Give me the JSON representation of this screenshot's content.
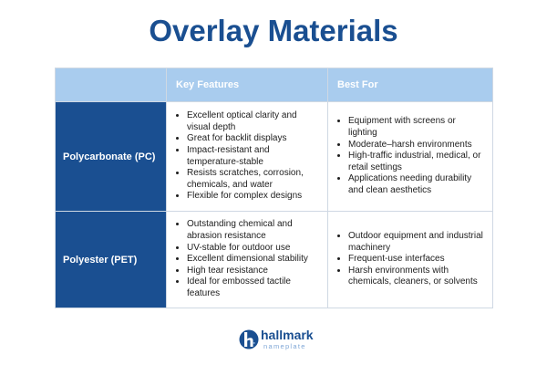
{
  "title": "Overlay Materials",
  "table": {
    "headers": [
      "",
      "Key Features",
      "Best For"
    ],
    "rows": [
      {
        "name": "Polycarbonate (PC)",
        "features": [
          "Excellent optical clarity and visual depth",
          "Great for backlit displays",
          "Impact-resistant and temperature-stable",
          "Resists scratches, corrosion, chemicals, and water",
          "Flexible for complex designs"
        ],
        "best_for": [
          "Equipment with screens or lighting",
          "Moderate–harsh environments",
          "High-traffic industrial, medical, or retail settings",
          "Applications needing durability and clean aesthetics"
        ]
      },
      {
        "name": "Polyester (PET)",
        "features": [
          "Outstanding chemical and abrasion resistance",
          "UV-stable for outdoor use",
          "Excellent dimensional stability",
          "High tear resistance",
          "Ideal for embossed tactile features"
        ],
        "best_for": [
          "Outdoor equipment and industrial machinery",
          "Frequent-use interfaces",
          "Harsh environments with chemicals, cleaners, or solvents"
        ]
      }
    ]
  },
  "logo": {
    "brand": "hallmark",
    "sub": "nameplate"
  },
  "colors": {
    "primary": "#1a4f91",
    "header_bg": "#a9ccee",
    "accent_light": "#7ea6d6"
  }
}
